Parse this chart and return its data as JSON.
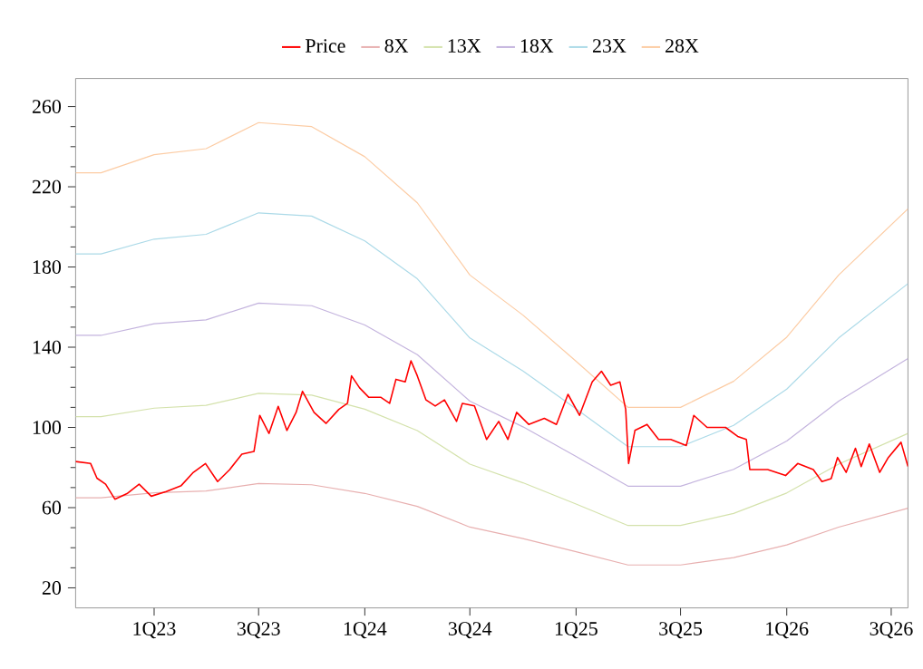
{
  "chart_data": {
    "type": "line",
    "legend": "top",
    "grid": false,
    "marker": "none",
    "line_style": "solid",
    "xlim": [
      "2022-08-18",
      "2026-07-30"
    ],
    "xticks": [
      {
        "value": "2023-01-01",
        "label": "1Q23"
      },
      {
        "value": "2023-07-01",
        "label": "3Q23"
      },
      {
        "value": "2024-01-01",
        "label": "1Q24"
      },
      {
        "value": "2024-07-01",
        "label": "3Q24"
      },
      {
        "value": "2025-01-01",
        "label": "1Q25"
      },
      {
        "value": "2025-07-01",
        "label": "3Q25"
      },
      {
        "value": "2026-01-01",
        "label": "1Q26"
      },
      {
        "value": "2026-07-01",
        "label": "3Q26"
      }
    ],
    "ylim": [
      10,
      274
    ],
    "yticks": [
      20,
      60,
      100,
      140,
      180,
      220,
      260
    ],
    "series": [
      {
        "name": "Price",
        "color": "#ff0000",
        "x": [
          "2022-08-18",
          "2022-09-13",
          "2022-09-24",
          "2022-10-09",
          "2022-10-25",
          "2022-11-15",
          "2022-12-06",
          "2022-12-27",
          "2023-01-22",
          "2023-02-17",
          "2023-03-10",
          "2023-03-31",
          "2023-04-21",
          "2023-05-12",
          "2023-06-02",
          "2023-06-23",
          "2023-07-03",
          "2023-07-19",
          "2023-08-04",
          "2023-08-19",
          "2023-09-04",
          "2023-09-15",
          "2023-10-05",
          "2023-10-26",
          "2023-11-17",
          "2023-12-02",
          "2023-12-09",
          "2023-12-23",
          "2024-01-08",
          "2024-01-29",
          "2024-02-13",
          "2024-02-24",
          "2024-03-11",
          "2024-03-21",
          "2024-04-01",
          "2024-04-16",
          "2024-05-02",
          "2024-05-18",
          "2024-06-08",
          "2024-06-18",
          "2024-07-09",
          "2024-07-30",
          "2024-08-20",
          "2024-09-05",
          "2024-09-20",
          "2024-10-11",
          "2024-11-07",
          "2024-11-28",
          "2024-12-18",
          "2025-01-07",
          "2025-01-29",
          "2025-02-14",
          "2025-03-02",
          "2025-03-18",
          "2025-03-28",
          "2025-04-02",
          "2025-04-13",
          "2025-05-04",
          "2025-05-24",
          "2025-06-14",
          "2025-07-11",
          "2025-07-24",
          "2025-08-16",
          "2025-09-17",
          "2025-10-08",
          "2025-10-23",
          "2025-10-29",
          "2025-11-29",
          "2025-12-30",
          "2026-01-20",
          "2026-02-16",
          "2026-03-03",
          "2026-03-19",
          "2026-03-30",
          "2026-04-14",
          "2026-04-30",
          "2026-05-10",
          "2026-05-24",
          "2026-06-11",
          "2026-06-26",
          "2026-07-18",
          "2026-07-30"
        ],
        "values": [
          83,
          82,
          74.7,
          71.7,
          64.2,
          67,
          71.7,
          65.7,
          68,
          71,
          77.6,
          82,
          73,
          79,
          86.7,
          88,
          106,
          97,
          110.5,
          98.5,
          107.5,
          118,
          107.5,
          102,
          109,
          112,
          125.7,
          119.7,
          115,
          115,
          112,
          124,
          122.7,
          133.2,
          125.7,
          113.7,
          110.7,
          113.7,
          103,
          112,
          110.7,
          94,
          103,
          94,
          107.5,
          101.5,
          104.5,
          101.5,
          116.5,
          106,
          122.7,
          128,
          121,
          122.7,
          109,
          82,
          98.5,
          101.5,
          94,
          94,
          91,
          106,
          100,
          100,
          95.5,
          94,
          79,
          79,
          76,
          82,
          79,
          73,
          74.5,
          85,
          77.6,
          89.6,
          80.5,
          91.7,
          77.6,
          85,
          92.6,
          80.5
        ]
      },
      {
        "name": "8X",
        "color": "#e8b0b0",
        "x": [
          "2022-08-18",
          "2022-10-01",
          "2023-01-01",
          "2023-04-01",
          "2023-07-01",
          "2023-10-01",
          "2024-01-01",
          "2024-04-01",
          "2024-07-01",
          "2024-10-01",
          "2025-01-01",
          "2025-04-01",
          "2025-07-01",
          "2025-10-01",
          "2026-01-01",
          "2026-04-01",
          "2026-07-30"
        ],
        "values": [
          64.9,
          64.9,
          67.4,
          68.3,
          72,
          71.4,
          67.1,
          60.6,
          50.3,
          44.6,
          38,
          31.4,
          31.4,
          35.1,
          41.4,
          50.3,
          59.7
        ]
      },
      {
        "name": "13X",
        "color": "#d4e2ac",
        "x": [
          "2022-08-18",
          "2022-10-01",
          "2023-01-01",
          "2023-04-01",
          "2023-07-01",
          "2023-10-01",
          "2024-01-01",
          "2024-04-01",
          "2024-07-01",
          "2024-10-01",
          "2025-01-01",
          "2025-04-01",
          "2025-07-01",
          "2025-10-01",
          "2026-01-01",
          "2026-04-01",
          "2026-07-30"
        ],
        "values": [
          105.4,
          105.4,
          109.6,
          111,
          117,
          116.1,
          109.1,
          98.4,
          81.7,
          72.4,
          61.8,
          51.1,
          51.1,
          57.1,
          67.3,
          81.7,
          97
        ]
      },
      {
        "name": "18X",
        "color": "#c4b4de",
        "x": [
          "2022-08-18",
          "2022-10-01",
          "2023-01-01",
          "2023-04-01",
          "2023-07-01",
          "2023-10-01",
          "2024-01-01",
          "2024-04-01",
          "2024-07-01",
          "2024-10-01",
          "2025-01-01",
          "2025-04-01",
          "2025-07-01",
          "2025-10-01",
          "2026-01-01",
          "2026-04-01",
          "2026-07-30"
        ],
        "values": [
          145.9,
          145.9,
          151.7,
          153.6,
          162,
          160.7,
          151.1,
          136.3,
          113.1,
          100.3,
          85.5,
          70.7,
          70.7,
          79.1,
          93.2,
          113.1,
          134.4
        ]
      },
      {
        "name": "23X",
        "color": "#acdae8",
        "x": [
          "2022-08-18",
          "2022-10-01",
          "2023-01-01",
          "2023-04-01",
          "2023-07-01",
          "2023-10-01",
          "2024-01-01",
          "2024-04-01",
          "2024-07-01",
          "2024-10-01",
          "2025-01-01",
          "2025-04-01",
          "2025-07-01",
          "2025-10-01",
          "2026-01-01",
          "2026-04-01",
          "2026-07-30"
        ],
        "values": [
          186.5,
          186.5,
          193.9,
          196.3,
          207,
          205.4,
          193,
          174.1,
          144.6,
          128.1,
          109.3,
          90.4,
          90.4,
          101,
          119.1,
          144.6,
          171.7
        ]
      },
      {
        "name": "28X",
        "color": "#fccca4",
        "x": [
          "2022-08-18",
          "2022-10-01",
          "2023-01-01",
          "2023-04-01",
          "2023-07-01",
          "2023-10-01",
          "2024-01-01",
          "2024-04-01",
          "2024-07-01",
          "2024-10-01",
          "2025-01-01",
          "2025-04-01",
          "2025-07-01",
          "2025-10-01",
          "2026-01-01",
          "2026-04-01",
          "2026-07-30"
        ],
        "values": [
          227,
          227,
          236,
          239,
          252,
          250,
          235,
          212,
          176,
          156,
          133,
          110,
          110,
          123,
          145,
          176,
          209
        ]
      }
    ]
  }
}
